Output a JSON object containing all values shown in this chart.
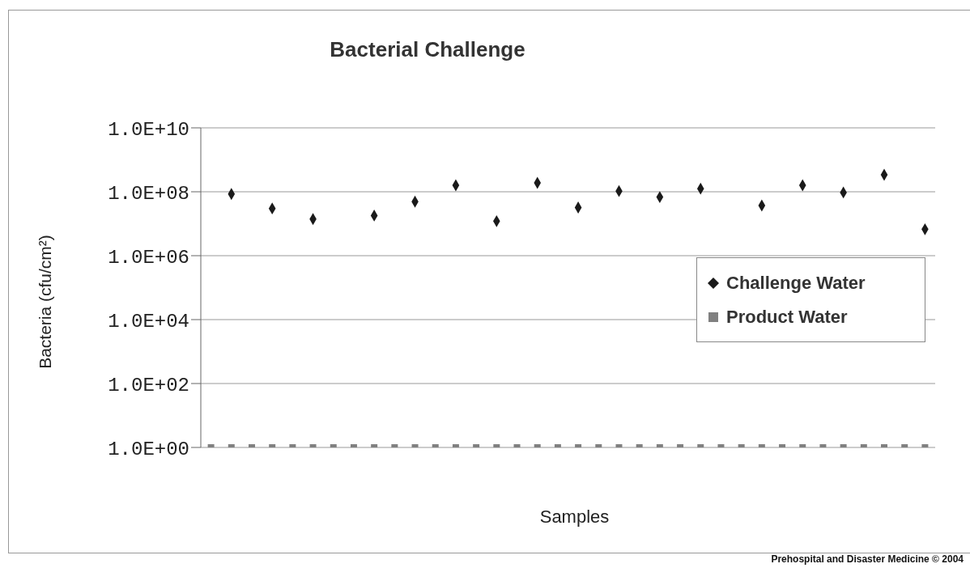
{
  "chart_data": {
    "type": "scatter",
    "title": "Bacterial Challenge",
    "xlabel": "Samples",
    "ylabel": "Bacteria (cfu/cm²)",
    "annotations": [
      "Prehospital and Disaster Medicine © 2004"
    ],
    "categories": [
      null,
      null,
      null,
      null,
      null,
      null,
      null,
      null,
      null,
      null,
      null,
      null,
      null,
      null,
      null,
      null,
      null,
      null,
      null,
      null,
      null,
      null,
      null,
      null,
      null,
      null,
      null,
      null,
      null,
      null,
      null,
      null,
      null,
      null,
      null,
      null
    ],
    "series": [
      {
        "name": "Challenge Water",
        "color": "#1a1a1a",
        "marker": "diamond",
        "values": [
          null,
          85000000,
          null,
          30000000,
          null,
          14000000,
          null,
          null,
          18000000,
          null,
          49000000,
          null,
          160000000,
          null,
          12000000,
          null,
          190000000,
          null,
          32000000,
          null,
          105000000,
          null,
          68000000,
          null,
          125000000,
          null,
          null,
          37000000,
          null,
          160000000,
          null,
          95000000,
          null,
          340000000,
          null,
          6700000
        ]
      },
      {
        "name": "Product Water",
        "color": "#808080",
        "marker": "square",
        "values": [
          1,
          1,
          1,
          1,
          1,
          1,
          1,
          1,
          1,
          1,
          1,
          1,
          1,
          1,
          1,
          1,
          1,
          1,
          1,
          1,
          1,
          1,
          1,
          1,
          1,
          1,
          1,
          1,
          1,
          1,
          1,
          1,
          1,
          1,
          1,
          1
        ]
      }
    ],
    "log": true,
    "ylim": [
      1,
      10000000000
    ],
    "yticks": [
      {
        "value": 1,
        "label": "1.0E+00"
      },
      {
        "value": 100,
        "label": "1.0E+02"
      },
      {
        "value": 10000,
        "label": "1.0E+04"
      },
      {
        "value": 1000000,
        "label": "1.0E+06"
      },
      {
        "value": 100000000,
        "label": "1.0E+08"
      },
      {
        "value": 10000000000,
        "label": "1.0E+10"
      }
    ],
    "grid": "y",
    "legend": "right"
  }
}
